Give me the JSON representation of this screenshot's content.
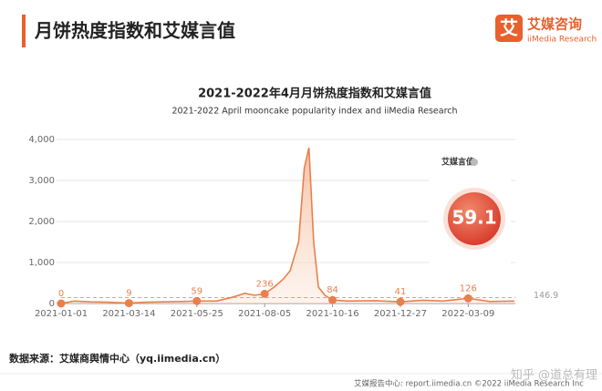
{
  "header": {
    "title": "月饼热度指数和艾媒言值",
    "logo_mark": "艾",
    "logo_name": "艾媒咨询",
    "logo_sub": "iiMedia Research"
  },
  "chart_data": {
    "type": "line",
    "title": "2021-2022年4月月饼热度指数和艾媒言值",
    "subtitle": "2021-2022 April mooncake popularity index and iiMedia Research",
    "x": [
      "2021-01-01",
      "2021-01-15",
      "2021-02-01",
      "2021-02-20",
      "2021-03-14",
      "2021-04-01",
      "2021-04-20",
      "2021-05-10",
      "2021-05-25",
      "2021-06-15",
      "2021-07-01",
      "2021-07-15",
      "2021-07-25",
      "2021-08-05",
      "2021-08-15",
      "2021-08-25",
      "2021-09-01",
      "2021-09-10",
      "2021-09-16",
      "2021-09-21",
      "2021-09-26",
      "2021-10-01",
      "2021-10-08",
      "2021-10-16",
      "2021-11-01",
      "2021-12-01",
      "2021-12-27",
      "2022-01-20",
      "2022-02-10",
      "2022-03-09",
      "2022-04-01",
      "2022-04-27"
    ],
    "series": [
      {
        "color": "#e8804e",
        "values": [
          0,
          60,
          40,
          30,
          9,
          30,
          40,
          50,
          59,
          60,
          150,
          250,
          200,
          236,
          400,
          600,
          800,
          1500,
          3300,
          3800,
          1500,
          400,
          200,
          84,
          60,
          70,
          41,
          80,
          60,
          126,
          50,
          60
        ],
        "value_labels": [
          "0",
          null,
          null,
          null,
          "9",
          null,
          null,
          null,
          "59",
          null,
          null,
          null,
          null,
          "236",
          null,
          null,
          null,
          null,
          null,
          null,
          null,
          null,
          null,
          "84",
          null,
          null,
          "41",
          null,
          null,
          "126",
          null,
          null
        ]
      }
    ],
    "xlim": [
      "2021-01-01",
      "2022-04-28"
    ],
    "xticks": [
      "2021-01-01",
      "2021-03-14",
      "2021-05-25",
      "2021-08-05",
      "2021-10-16",
      "2021-12-27",
      "2022-03-09"
    ],
    "ylim": [
      0,
      4000
    ],
    "yticks": [
      {
        "value": 4000,
        "label": "4,000"
      },
      {
        "value": 3000,
        "label": "3,000"
      },
      {
        "value": 2000,
        "label": "2,000"
      },
      {
        "value": 1000,
        "label": "1,000"
      },
      0
    ],
    "grid": true,
    "average": 146.9,
    "indicator": {
      "label": "艾媒言值",
      "value": 59.1
    }
  },
  "source": "数据来源：艾媒商舆情中心（yq.iimedia.cn）",
  "footer": {
    "site": "艾媒报告中心: report.iimedia.cn ©2022 iiMedia Research Inc",
    "watermark": "知乎 @道总有理"
  }
}
